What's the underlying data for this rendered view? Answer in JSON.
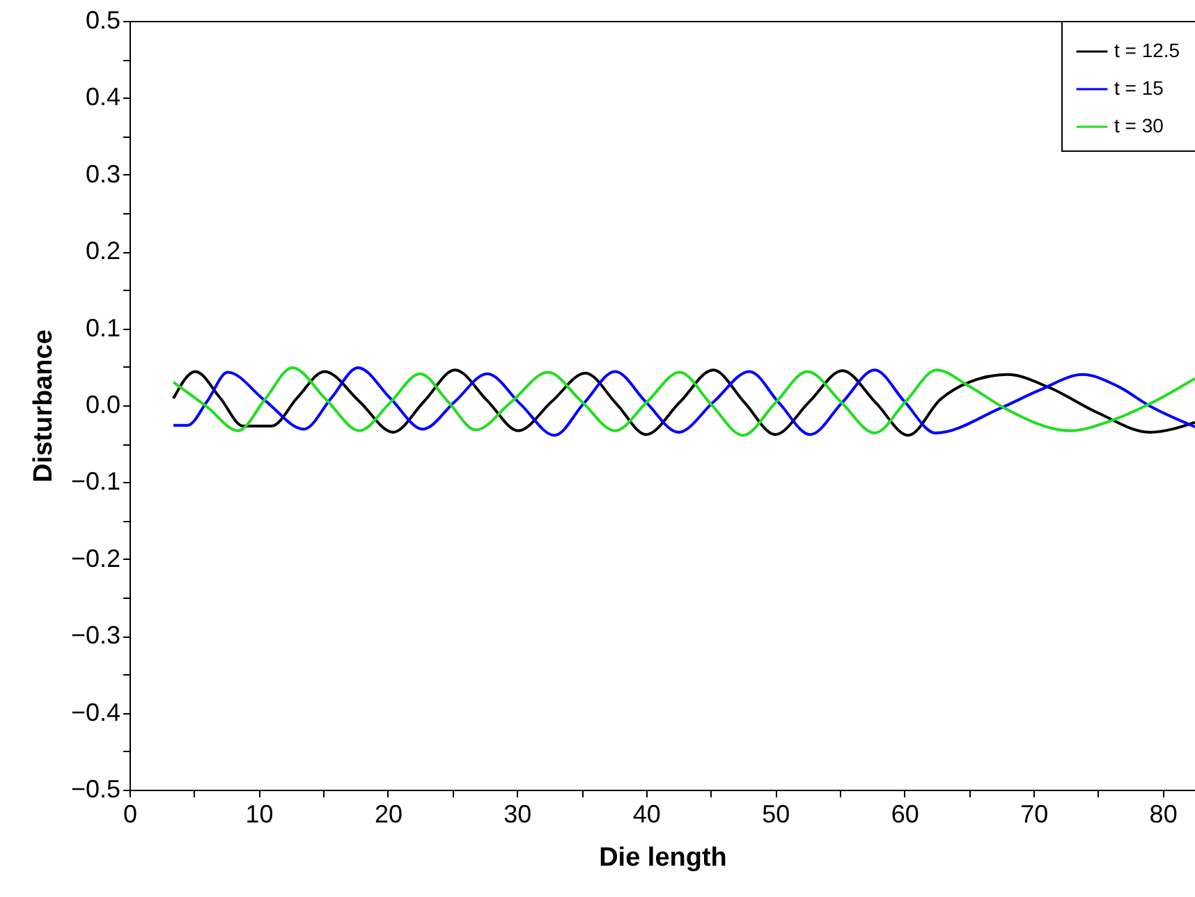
{
  "chart_data": {
    "type": "line",
    "xlabel": "Die length",
    "ylabel": "Disturbance",
    "xlim": [
      0,
      82.5
    ],
    "ylim": [
      -0.5,
      0.5
    ],
    "xticks": [
      0,
      {
        "value": 5,
        "label": null
      },
      10,
      {
        "value": 15,
        "label": null
      },
      20,
      {
        "value": 25,
        "label": null
      },
      30,
      {
        "value": 35,
        "label": null
      },
      40,
      {
        "value": 45,
        "label": null
      },
      50,
      {
        "value": 55,
        "label": null
      },
      60,
      {
        "value": 65,
        "label": null
      },
      70,
      {
        "value": 75,
        "label": null
      },
      80
    ],
    "yticks": [
      {
        "value": -0.5,
        "label": "−0.5"
      },
      {
        "value": -0.45,
        "label": null
      },
      {
        "value": -0.4,
        "label": "−0.4"
      },
      {
        "value": -0.35,
        "label": null
      },
      {
        "value": -0.3,
        "label": "−0.3"
      },
      {
        "value": -0.25,
        "label": null
      },
      {
        "value": -0.2,
        "label": "−0.2"
      },
      {
        "value": -0.15,
        "label": null
      },
      {
        "value": -0.1,
        "label": "−0.1"
      },
      {
        "value": -0.05,
        "label": null
      },
      {
        "value": 0,
        "label": "0.0"
      },
      {
        "value": 0.05,
        "label": null
      },
      0.1,
      {
        "value": 0.15,
        "label": null
      },
      0.2,
      {
        "value": 0.25,
        "label": null
      },
      0.3,
      {
        "value": 0.35,
        "label": null
      },
      0.4,
      {
        "value": 0.45,
        "label": null
      },
      0.5
    ],
    "grid": false,
    "legend": "top right",
    "marker": "none",
    "line_style": "solid",
    "series": [
      {
        "name": "t = 12.5",
        "color": "#000000",
        "x": [
          3.4,
          5.1,
          7.0,
          8.8,
          11.0,
          13.0,
          15.1,
          17.8,
          20.4,
          22.8,
          25.2,
          27.7,
          30.1,
          32.7,
          35.3,
          37.7,
          40.0,
          42.6,
          45.2,
          47.6,
          50.0,
          52.6,
          55.2,
          57.8,
          60.3,
          62.8,
          65.0,
          68.0,
          71.1,
          75.0,
          79.0,
          82.5
        ],
        "values": [
          0.009,
          0.044,
          0.01,
          -0.027,
          -0.027,
          0.01,
          0.044,
          0.005,
          -0.035,
          0.005,
          0.046,
          0.006,
          -0.033,
          0.005,
          0.042,
          0.002,
          -0.038,
          0.004,
          0.046,
          0.004,
          -0.038,
          0.004,
          0.045,
          0.003,
          -0.039,
          0.008,
          0.03,
          0.04,
          0.024,
          -0.01,
          -0.035,
          -0.022
        ]
      },
      {
        "name": "t = 15",
        "color": "#0000ff",
        "x": [
          3.4,
          4.5,
          6.0,
          7.6,
          10.5,
          13.5,
          15.6,
          17.7,
          20.2,
          22.7,
          25.2,
          27.7,
          30.3,
          32.9,
          35.2,
          37.6,
          40.0,
          42.5,
          45.2,
          48.0,
          50.3,
          52.7,
          55.2,
          57.7,
          60.0,
          62.4,
          67.4,
          70.5,
          73.8,
          76.5,
          79.0,
          82.5
        ],
        "values": [
          -0.026,
          -0.026,
          0.005,
          0.043,
          0.006,
          -0.031,
          0.009,
          0.049,
          0.009,
          -0.031,
          0.005,
          0.041,
          0.001,
          -0.039,
          0.003,
          0.044,
          0.004,
          -0.035,
          0.004,
          0.044,
          0.003,
          -0.038,
          0.004,
          0.046,
          0.005,
          -0.036,
          -0.004,
          0.02,
          0.04,
          0.025,
          -0.001,
          -0.028
        ]
      },
      {
        "name": "t = 30",
        "color": "#22dd22",
        "x": [
          3.4,
          6.0,
          8.4,
          10.5,
          12.6,
          15.2,
          17.8,
          20.2,
          22.5,
          24.7,
          26.8,
          29.6,
          32.4,
          35.0,
          37.6,
          40.1,
          42.6,
          45.0,
          47.5,
          50.0,
          52.5,
          55.1,
          57.7,
          60.1,
          62.5,
          65.0,
          67.8,
          72.8,
          76.0,
          79.0,
          82.5
        ],
        "values": [
          0.03,
          -0.002,
          -0.033,
          0.008,
          0.049,
          0.008,
          -0.033,
          0.004,
          0.041,
          0.004,
          -0.032,
          0.005,
          0.043,
          0.005,
          -0.033,
          0.005,
          0.043,
          0.002,
          -0.039,
          0.003,
          0.044,
          0.004,
          -0.036,
          0.005,
          0.046,
          0.025,
          -0.004,
          -0.033,
          -0.02,
          0.002,
          0.035
        ]
      }
    ]
  }
}
